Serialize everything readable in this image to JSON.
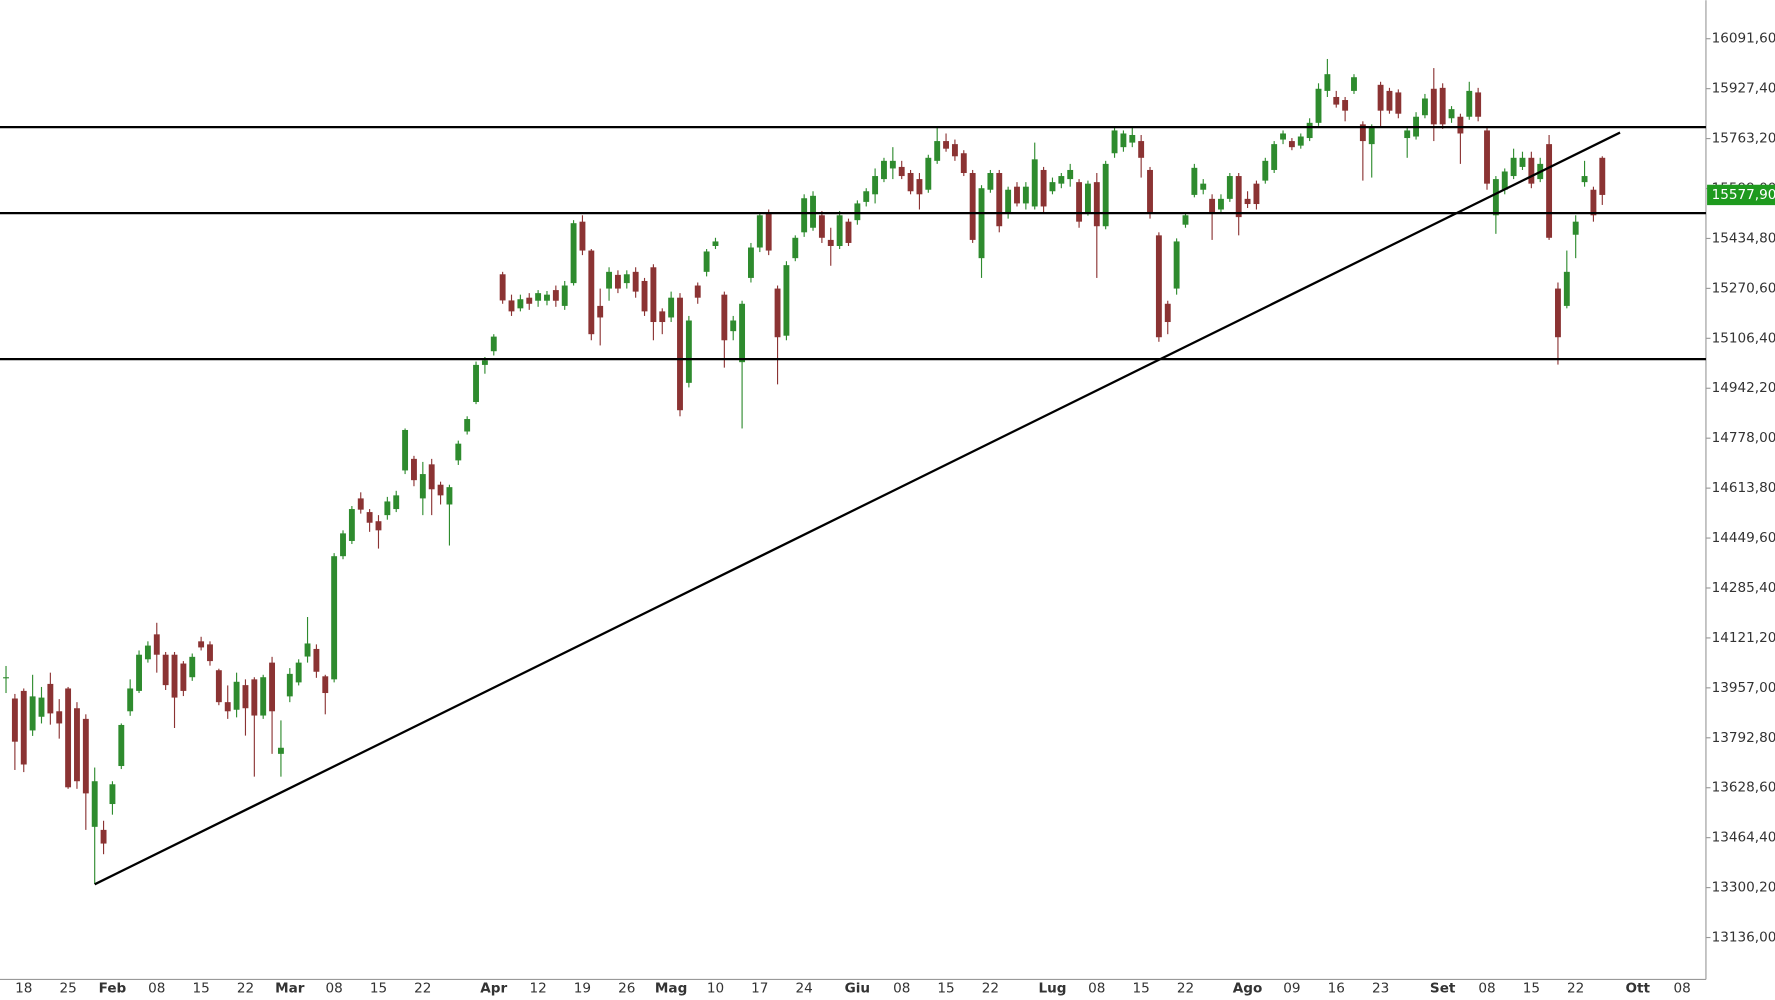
{
  "chart_data": {
    "type": "candlestick",
    "categories": [
      null,
      null,
      "18",
      null,
      null,
      null,
      null,
      "25",
      null,
      null,
      null,
      null,
      "Feb",
      null,
      null,
      null,
      null,
      "08",
      null,
      null,
      null,
      null,
      "15",
      null,
      null,
      null,
      null,
      "22",
      null,
      null,
      null,
      null,
      "Mar",
      null,
      null,
      null,
      null,
      "08",
      null,
      null,
      null,
      null,
      "15",
      null,
      null,
      null,
      null,
      "22",
      null,
      null,
      null,
      null,
      null,
      null,
      null,
      "Apr",
      null,
      null,
      null,
      null,
      "12",
      null,
      null,
      null,
      null,
      "19",
      null,
      null,
      null,
      null,
      "26",
      null,
      null,
      null,
      null,
      "Mag",
      null,
      null,
      null,
      null,
      "10",
      null,
      null,
      null,
      null,
      "17",
      null,
      null,
      null,
      null,
      "24",
      null,
      null,
      null,
      null,
      null,
      "Giu",
      null,
      null,
      null,
      null,
      "08",
      null,
      null,
      null,
      null,
      "15",
      null,
      null,
      null,
      null,
      "22",
      null,
      null,
      null,
      null,
      null,
      null,
      "Lug",
      null,
      null,
      null,
      null,
      "08",
      null,
      null,
      null,
      null,
      "15",
      null,
      null,
      null,
      null,
      "22",
      null,
      null,
      null,
      null,
      null,
      null,
      "Ago",
      null,
      null,
      null,
      null,
      "09",
      null,
      null,
      null,
      null,
      "16",
      null,
      null,
      null,
      null,
      "23",
      null,
      null,
      null,
      null,
      null,
      null,
      "Set",
      null,
      null,
      null,
      null,
      "08",
      null,
      null,
      null,
      null,
      "15",
      null,
      null,
      null,
      null,
      "22",
      null,
      null,
      null,
      null,
      null,
      null,
      "Ott",
      null,
      null,
      null,
      null,
      "08"
    ],
    "open": [
      13992,
      13922,
      13947,
      13817,
      13862,
      13970,
      13880,
      13955,
      13890,
      13855,
      13500,
      13490,
      13575,
      13700,
      13880,
      13947,
      14051,
      14133,
      14066,
      14066,
      14037,
      13992,
      14110,
      14100,
      14015,
      13910,
      13885,
      13966,
      13985,
      13866,
      14040,
      13740,
      13929,
      13975,
      14060,
      14085,
      13995,
      13985,
      14390,
      14440,
      14580,
      14535,
      14505,
      14525,
      14545,
      14672,
      14710,
      14580,
      14692,
      14625,
      14560,
      14705,
      14800,
      14897,
      15019,
      15064,
      15317,
      15231,
      15205,
      15240,
      15230,
      15230,
      15265,
      15213,
      15288,
      15490,
      15395,
      15213,
      15270,
      15315,
      15288,
      15325,
      15295,
      15340,
      15195,
      15175,
      15240,
      14960,
      15280,
      15325,
      15410,
      15250,
      15130,
      15028,
      15305,
      15405,
      15518,
      15270,
      15115,
      15370,
      15455,
      15470,
      15511,
      15430,
      15410,
      15490,
      15495,
      15555,
      15580,
      15630,
      15665,
      15670,
      15650,
      15630,
      15595,
      15690,
      15755,
      15745,
      15715,
      15650,
      15370,
      15595,
      15650,
      15520,
      15605,
      15550,
      15540,
      15660,
      15590,
      15615,
      15630,
      15620,
      15520,
      15620,
      15475,
      15715,
      15735,
      15750,
      15755,
      15660,
      15445,
      15220,
      15270,
      15480,
      15578,
      15595,
      15565,
      15530,
      15565,
      15640,
      15565,
      15615,
      15625,
      15660,
      15760,
      15755,
      15740,
      15765,
      15815,
      15920,
      15900,
      15890,
      15920,
      15810,
      15745,
      15940,
      15920,
      15915,
      15765,
      15770,
      15840,
      15927,
      15930,
      15830,
      15835,
      15835,
      15915,
      15790,
      15511,
      15595,
      15640,
      15670,
      15700,
      15630,
      15745,
      15270,
      15213,
      15447,
      15620,
      15595,
      15700,
      null,
      null,
      null,
      null,
      null,
      null,
      null,
      null,
      null
    ],
    "high": [
      14029,
      13937,
      13955,
      14000,
      13960,
      14007,
      13920,
      13960,
      13910,
      13870,
      13695,
      13520,
      13650,
      13840,
      13985,
      14080,
      14110,
      14171,
      14075,
      14075,
      14045,
      14070,
      14125,
      14110,
      14020,
      13965,
      14007,
      13985,
      13992,
      14000,
      14059,
      13850,
      14022,
      14051,
      14190,
      14100,
      14000,
      14400,
      14475,
      14555,
      14600,
      14545,
      14525,
      14585,
      14605,
      14810,
      14720,
      14700,
      14710,
      14635,
      14625,
      14770,
      14850,
      15030,
      15045,
      15120,
      15325,
      15250,
      15250,
      15255,
      15265,
      15262,
      15280,
      15295,
      15495,
      15511,
      15400,
      15270,
      15340,
      15330,
      15330,
      15340,
      15305,
      15350,
      15205,
      15260,
      15255,
      15180,
      15290,
      15400,
      15437,
      15260,
      15180,
      15230,
      15420,
      15520,
      15530,
      15280,
      15360,
      15445,
      15580,
      15590,
      15525,
      15470,
      15525,
      15500,
      15560,
      15600,
      15665,
      15700,
      15735,
      15690,
      15660,
      15650,
      15710,
      15800,
      15780,
      15760,
      15725,
      15660,
      15610,
      15660,
      15660,
      15605,
      15620,
      15620,
      15750,
      15670,
      15635,
      15650,
      15680,
      15630,
      15625,
      15650,
      15690,
      15800,
      15790,
      15800,
      15775,
      15670,
      15455,
      15230,
      15435,
      15520,
      15680,
      15630,
      15580,
      15580,
      15650,
      15650,
      15590,
      15625,
      15700,
      15755,
      15790,
      15765,
      15780,
      15830,
      15945,
      16025,
      15920,
      15900,
      15975,
      15820,
      15810,
      15950,
      15930,
      15925,
      15800,
      15850,
      15910,
      15995,
      15945,
      15870,
      15845,
      15950,
      15930,
      15800,
      15640,
      15665,
      15730,
      15720,
      15720,
      15700,
      15775,
      15290,
      15395,
      15511,
      15690,
      15605,
      15705,
      null,
      null,
      null,
      null,
      null,
      null,
      null,
      null,
      null
    ],
    "low": [
      13940,
      13687,
      13680,
      13799,
      13840,
      13836,
      13790,
      13625,
      13625,
      13490,
      13312,
      13410,
      13540,
      13690,
      13865,
      13940,
      14040,
      14007,
      13950,
      13825,
      13930,
      13980,
      14080,
      14030,
      13900,
      13855,
      13860,
      13800,
      13665,
      13855,
      13740,
      13665,
      13910,
      13965,
      14040,
      13990,
      13870,
      13975,
      14380,
      14430,
      14530,
      14470,
      14415,
      14510,
      14535,
      14660,
      14620,
      14525,
      14525,
      14560,
      14425,
      14690,
      14790,
      14890,
      14990,
      15050,
      15220,
      15180,
      15195,
      15200,
      15210,
      15215,
      15210,
      15200,
      15280,
      15380,
      15100,
      15083,
      15230,
      15255,
      15270,
      15240,
      15180,
      15100,
      15120,
      15160,
      14850,
      14945,
      15220,
      15310,
      15400,
      15010,
      15100,
      14810,
      15290,
      15390,
      15380,
      14955,
      15100,
      15360,
      15440,
      15460,
      15420,
      15345,
      15400,
      15410,
      15480,
      15540,
      15550,
      15620,
      15630,
      15630,
      15580,
      15530,
      15585,
      15680,
      15720,
      15690,
      15640,
      15420,
      15305,
      15585,
      15455,
      15500,
      15540,
      15530,
      15530,
      15520,
      15580,
      15600,
      15605,
      15470,
      15510,
      15305,
      15465,
      15700,
      15720,
      15735,
      15635,
      15500,
      15095,
      15120,
      15250,
      15470,
      15570,
      15580,
      15430,
      15520,
      15555,
      15445,
      15535,
      15530,
      15615,
      15650,
      15745,
      15725,
      15730,
      15755,
      15805,
      15900,
      15865,
      15820,
      15910,
      15625,
      15635,
      15800,
      15845,
      15830,
      15700,
      15760,
      15830,
      15755,
      15795,
      15815,
      15680,
      15825,
      15820,
      15595,
      15450,
      15580,
      15630,
      15660,
      15600,
      15620,
      15430,
      15020,
      15205,
      15370,
      15605,
      15490,
      15545,
      null,
      null,
      null,
      null,
      null,
      null,
      null,
      null,
      null
    ],
    "close": [
      13992,
      13780,
      13705,
      13929,
      13925,
      13873,
      13840,
      13630,
      13650,
      13610,
      13650,
      13445,
      13640,
      13835,
      13955,
      14066,
      14096,
      14066,
      13966,
      13925,
      13947,
      14059,
      14090,
      14045,
      13910,
      13880,
      13977,
      13890,
      13866,
      13992,
      13880,
      13760,
      14003,
      14040,
      14103,
      14010,
      13940,
      14390,
      14465,
      14545,
      14543,
      14500,
      14475,
      14570,
      14590,
      14805,
      14640,
      14660,
      14610,
      14590,
      14617,
      14760,
      14841,
      15019,
      15034,
      15112,
      15231,
      15195,
      15235,
      15220,
      15255,
      15250,
      15230,
      15280,
      15485,
      15395,
      15120,
      15175,
      15325,
      15270,
      15317,
      15260,
      15195,
      15160,
      15160,
      15240,
      14870,
      15165,
      15240,
      15392,
      15425,
      15100,
      15165,
      15220,
      15405,
      15511,
      15395,
      15110,
      15347,
      15437,
      15567,
      15575,
      15437,
      15410,
      15511,
      15420,
      15550,
      15590,
      15640,
      15690,
      15690,
      15640,
      15590,
      15580,
      15700,
      15755,
      15730,
      15705,
      15650,
      15430,
      15600,
      15650,
      15475,
      15595,
      15550,
      15605,
      15695,
      15540,
      15620,
      15640,
      15660,
      15490,
      15615,
      15475,
      15680,
      15790,
      15780,
      15775,
      15700,
      15520,
      15110,
      15160,
      15425,
      15511,
      15667,
      15615,
      15520,
      15565,
      15640,
      15505,
      15548,
      15548,
      15690,
      15745,
      15780,
      15735,
      15770,
      15815,
      15927,
      15975,
      15875,
      15855,
      15965,
      15755,
      15800,
      15855,
      15855,
      15845,
      15790,
      15835,
      15895,
      15810,
      15810,
      15860,
      15780,
      15920,
      15835,
      15615,
      15630,
      15655,
      15700,
      15700,
      15615,
      15680,
      15437,
      15110,
      15325,
      15490,
      15640,
      15511,
      15577.9,
      null,
      null,
      null,
      null,
      null,
      null,
      null,
      null,
      null
    ],
    "up_color": "#2e8b2e",
    "down_color": "#8b3333",
    "last_label": "15577,90",
    "last_color": "#1e9a1e",
    "ylim": [
      12998.3,
      16218.2
    ],
    "yticks": [
      {
        "value": 16091.6,
        "label": "16091,60"
      },
      {
        "value": 15927.4,
        "label": "15927,40"
      },
      {
        "value": 15763.2,
        "label": "15763,20"
      },
      {
        "value": 15599,
        "label": "15599,00"
      },
      {
        "value": 15434.8,
        "label": "15434,80"
      },
      {
        "value": 15270.6,
        "label": "15270,60"
      },
      {
        "value": 15106.4,
        "label": "15106,40"
      },
      {
        "value": 14942.2,
        "label": "14942,20"
      },
      {
        "value": 14778,
        "label": "14778,00"
      },
      {
        "value": 14613.8,
        "label": "14613,80"
      },
      {
        "value": 14449.6,
        "label": "14449,60"
      },
      {
        "value": 14285.4,
        "label": "14285,40"
      },
      {
        "value": 14121.2,
        "label": "14121,20"
      },
      {
        "value": 13957,
        "label": "13957,00"
      },
      {
        "value": 13792.8,
        "label": "13792,80"
      },
      {
        "value": 13628.6,
        "label": "13628,60"
      },
      {
        "value": 13464.4,
        "label": "13464,40"
      },
      {
        "value": 13300.2,
        "label": "13300,20"
      },
      {
        "value": 13136,
        "label": "13136,00"
      }
    ],
    "hlines": [
      15801,
      15518,
      15038
    ],
    "trendline": {
      "x": [
        10,
        182
      ],
      "y": [
        13311,
        15783
      ]
    }
  }
}
